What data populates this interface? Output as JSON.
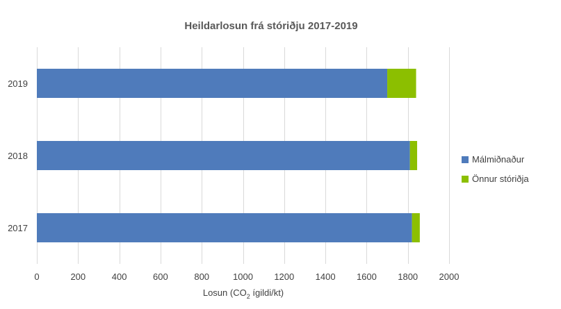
{
  "chart_data": {
    "type": "bar",
    "orientation": "horizontal",
    "stacked": true,
    "title": "Heildarlosun frá stóriðju 2017-2019",
    "xlabel_prefix": "Losun (CO",
    "xlabel_sub": "2",
    "xlabel_suffix": " ígildi/kt)",
    "xlim": [
      0,
      2000
    ],
    "xticks": [
      "0",
      "200",
      "400",
      "600",
      "800",
      "1000",
      "1200",
      "1400",
      "1600",
      "1800",
      "2000"
    ],
    "xtick_values": [
      0,
      200,
      400,
      600,
      800,
      1000,
      1200,
      1400,
      1600,
      1800,
      2000
    ],
    "categories": [
      "2019",
      "2018",
      "2017"
    ],
    "series": [
      {
        "name": "Málmiðnaður",
        "color": "#4f7bbb",
        "values": [
          1700,
          1810,
          1820
        ]
      },
      {
        "name": "Önnur stóriðja",
        "color": "#8cbf00",
        "values": [
          140,
          35,
          38
        ]
      }
    ],
    "grid": "vertical",
    "legend_position": "right"
  }
}
